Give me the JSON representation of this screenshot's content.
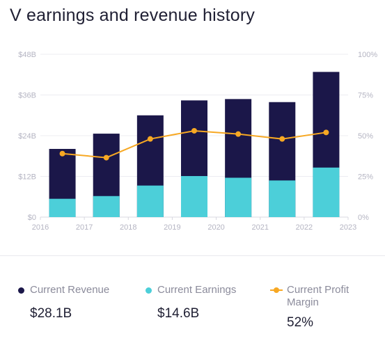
{
  "page": {
    "title": "V earnings and revenue history"
  },
  "chart_data": {
    "type": "bar",
    "categories": [
      "2016",
      "2017",
      "2018",
      "2019",
      "2020",
      "2021",
      "2022"
    ],
    "series": [
      {
        "name": "Current Revenue",
        "type": "stacked-bar",
        "axis": "left",
        "values": [
          20.1,
          24.6,
          30.0,
          34.4,
          34.8,
          33.9,
          42.8
        ],
        "color": "#1b1749"
      },
      {
        "name": "Current Earnings",
        "type": "bar",
        "axis": "left",
        "values": [
          5.4,
          6.2,
          9.3,
          12.1,
          11.6,
          10.8,
          14.6
        ],
        "color": "#4ccfd9"
      },
      {
        "name": "Current Profit Margin",
        "type": "line",
        "axis": "right",
        "values": [
          39,
          36.5,
          48,
          53,
          51,
          48,
          52
        ],
        "color": "#f7a823"
      }
    ],
    "x_ticks": [
      "2016",
      "2017",
      "2018",
      "2019",
      "2020",
      "2021",
      "2022",
      "2023"
    ],
    "y_left": {
      "ticks": [
        "$0",
        "$12B",
        "$24B",
        "$36B",
        "$48B"
      ],
      "ylim": [
        0,
        48
      ]
    },
    "y_right": {
      "ticks": [
        "0%",
        "25%",
        "50%",
        "75%",
        "100%"
      ],
      "ylim": [
        0,
        100
      ]
    },
    "grid": true,
    "legend": [
      {
        "label": "Current Revenue",
        "value": "$28.1B",
        "color": "#1b1749",
        "marker": "dot"
      },
      {
        "label": "Current Earnings",
        "value": "$14.6B",
        "color": "#4ccfd9",
        "marker": "dot"
      },
      {
        "label": "Current Profit Margin",
        "value": "52%",
        "color": "#f7a823",
        "marker": "line-dot"
      }
    ]
  }
}
